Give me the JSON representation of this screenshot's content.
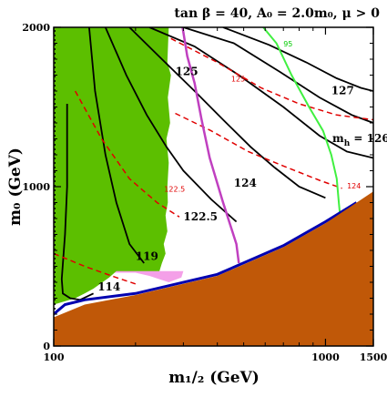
{
  "chart_data": {
    "type": "contour",
    "title": "tan β = 40, A₀ = 2.0m₀,  μ > 0",
    "xlabel": "m₁/₂ (GeV)",
    "ylabel": "m₀ (GeV)",
    "xlim": [
      100,
      1500
    ],
    "ylim": [
      0,
      2000
    ],
    "xscale": "log",
    "xticks": [
      100,
      1000,
      1500
    ],
    "yticks": [
      0,
      1000,
      2000
    ],
    "colors": {
      "green_region": "#5cbf00",
      "pink_region": "#f4a0e8",
      "brown_region": "#c05808",
      "blue_strip": "#0000b0",
      "black_contour": "#000000",
      "red_dashed": "#e00000",
      "magenta_line": "#c040c0",
      "green_line": "#40f040"
    },
    "mh_contours_solid": [
      {
        "label": "114",
        "points": [
          [
            112,
            1520
          ],
          [
            112,
            1000
          ],
          [
            110,
            700
          ],
          [
            107,
            420
          ],
          [
            108,
            330
          ],
          [
            115,
            300
          ],
          [
            125,
            290
          ],
          [
            140,
            330
          ]
        ]
      },
      {
        "label": "119",
        "points": [
          [
            135,
            2000
          ],
          [
            142,
            1600
          ],
          [
            155,
            1200
          ],
          [
            170,
            900
          ],
          [
            190,
            640
          ],
          [
            215,
            520
          ]
        ]
      },
      {
        "label": "122.5",
        "points": [
          [
            155,
            2000
          ],
          [
            185,
            1700
          ],
          [
            220,
            1450
          ],
          [
            260,
            1250
          ],
          [
            300,
            1100
          ],
          [
            380,
            920
          ],
          [
            470,
            780
          ]
        ]
      },
      {
        "label": "124",
        "points": [
          [
            190,
            2000
          ],
          [
            250,
            1800
          ],
          [
            330,
            1600
          ],
          [
            420,
            1420
          ],
          [
            530,
            1250
          ],
          [
            650,
            1120
          ],
          [
            800,
            1000
          ],
          [
            1000,
            930
          ]
        ]
      },
      {
        "label": "125",
        "points": [
          [
            225,
            2000
          ],
          [
            330,
            1880
          ],
          [
            480,
            1700
          ],
          [
            700,
            1500
          ],
          [
            950,
            1320
          ],
          [
            1200,
            1220
          ],
          [
            1500,
            1180
          ]
        ]
      },
      {
        "label": "126",
        "points": [
          [
            300,
            2000
          ],
          [
            460,
            1900
          ],
          [
            680,
            1720
          ],
          [
            950,
            1560
          ],
          [
            1250,
            1450
          ],
          [
            1500,
            1400
          ]
        ]
      },
      {
        "label": "127",
        "points": [
          [
            420,
            2000
          ],
          [
            620,
            1890
          ],
          [
            850,
            1780
          ],
          [
            1100,
            1680
          ],
          [
            1350,
            1620
          ],
          [
            1500,
            1600
          ]
        ]
      }
    ],
    "mh_contours_dashed_red": [
      {
        "label": "",
        "points": [
          [
            100,
            580
          ],
          [
            130,
            500
          ],
          [
            170,
            430
          ],
          [
            200,
            390
          ]
        ]
      },
      {
        "label": "122.5",
        "points": [
          [
            120,
            1600
          ],
          [
            150,
            1300
          ],
          [
            190,
            1050
          ],
          [
            240,
            900
          ],
          [
            290,
            810
          ]
        ]
      },
      {
        "label": "124",
        "points": [
          [
            280,
            1460
          ],
          [
            380,
            1350
          ],
          [
            520,
            1220
          ],
          [
            700,
            1130
          ],
          [
            950,
            1040
          ],
          [
            1150,
            990
          ]
        ]
      },
      {
        "label": "125",
        "points": [
          [
            270,
            1930
          ],
          [
            400,
            1780
          ],
          [
            580,
            1620
          ],
          [
            800,
            1520
          ],
          [
            1100,
            1450
          ],
          [
            1500,
            1420
          ]
        ]
      }
    ],
    "annotations": [
      {
        "text": "125",
        "x": 280,
        "y": 1700
      },
      {
        "text": "127",
        "x": 1050,
        "y": 1580
      },
      {
        "text": "m_h = 126 GeV",
        "x": 1060,
        "y": 1280
      },
      {
        "text": "124",
        "x": 460,
        "y": 1000
      },
      {
        "text": "122.5",
        "x": 300,
        "y": 790
      },
      {
        "text": "119",
        "x": 200,
        "y": 540
      },
      {
        "text": "114",
        "x": 145,
        "y": 350
      },
      {
        "text": "125",
        "x": 450,
        "y": 1660
      },
      {
        "text": "124",
        "x": 1200,
        "y": 990
      },
      {
        "text": "122.5",
        "x": 255,
        "y": 970
      },
      {
        "text": "95",
        "x": 700,
        "y": 1880
      }
    ],
    "green_region_boundary": [
      [
        100,
        2000
      ],
      [
        265,
        2000
      ],
      [
        262,
        1780
      ],
      [
        270,
        1700
      ],
      [
        263,
        1560
      ],
      [
        268,
        1400
      ],
      [
        260,
        1300
      ],
      [
        265,
        1150
      ],
      [
        262,
        1000
      ],
      [
        263,
        900
      ],
      [
        258,
        820
      ],
      [
        262,
        720
      ],
      [
        254,
        640
      ],
      [
        258,
        580
      ],
      [
        250,
        520
      ],
      [
        245,
        470
      ],
      [
        170,
        470
      ],
      [
        160,
        430
      ],
      [
        140,
        360
      ],
      [
        130,
        330
      ],
      [
        120,
        300
      ],
      [
        100,
        260
      ]
    ],
    "pink_region_boundary": [
      [
        100,
        790
      ],
      [
        120,
        720
      ],
      [
        135,
        600
      ],
      [
        140,
        520
      ],
      [
        150,
        460
      ],
      [
        200,
        460
      ],
      [
        225,
        440
      ],
      [
        265,
        400
      ],
      [
        295,
        430
      ],
      [
        300,
        470
      ],
      [
        240,
        470
      ],
      [
        200,
        520
      ],
      [
        160,
        560
      ],
      [
        150,
        640
      ],
      [
        140,
        650
      ],
      [
        125,
        700
      ],
      [
        100,
        800
      ]
    ],
    "brown_region_boundary": [
      [
        100,
        0
      ],
      [
        1500,
        0
      ],
      [
        1500,
        970
      ],
      [
        1000,
        770
      ],
      [
        700,
        620
      ],
      [
        400,
        440
      ],
      [
        200,
        320
      ],
      [
        130,
        260
      ],
      [
        100,
        180
      ]
    ],
    "blue_strip": [
      [
        100,
        200
      ],
      [
        110,
        260
      ],
      [
        130,
        290
      ],
      [
        200,
        330
      ],
      [
        400,
        450
      ],
      [
        700,
        630
      ],
      [
        1000,
        780
      ],
      [
        1300,
        900
      ]
    ],
    "magenta_line": [
      [
        298,
        2000
      ],
      [
        310,
        1820
      ],
      [
        330,
        1650
      ],
      [
        350,
        1420
      ],
      [
        375,
        1180
      ],
      [
        420,
        900
      ],
      [
        470,
        640
      ],
      [
        480,
        520
      ]
    ],
    "green_line": [
      [
        590,
        2000
      ],
      [
        660,
        1900
      ],
      [
        750,
        1700
      ],
      [
        870,
        1500
      ],
      [
        980,
        1350
      ],
      [
        1050,
        1200
      ],
      [
        1100,
        1050
      ],
      [
        1120,
        900
      ],
      [
        1130,
        830
      ]
    ],
    "black_dotted_vertical": [
      [
        101,
        0
      ],
      [
        101,
        2000
      ]
    ]
  }
}
